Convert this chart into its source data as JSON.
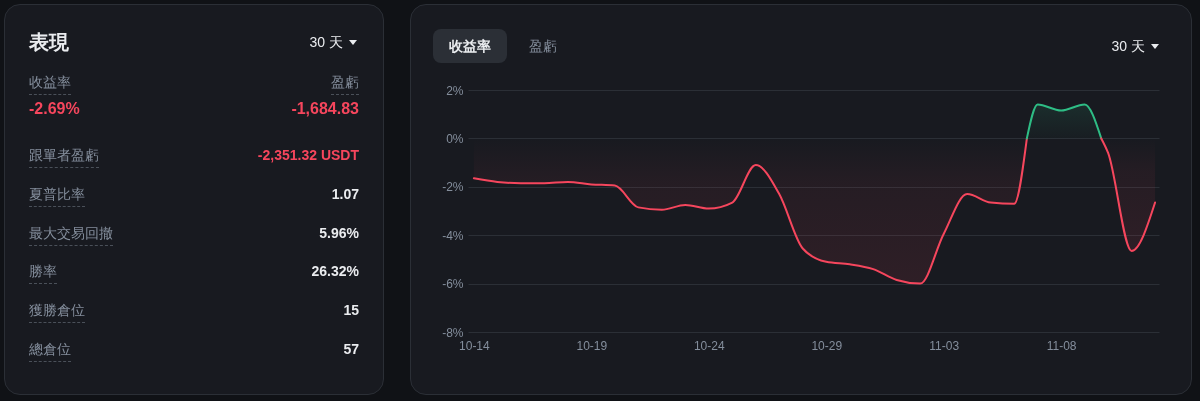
{
  "chart_data": [
    {
      "type": "other",
      "title": "表現",
      "annotations": [
        "30 天"
      ],
      "categories": [
        "收益率",
        "盈虧",
        "跟單者盈虧",
        "夏普比率",
        "最大交易回撤",
        "勝率",
        "獲勝倉位",
        "總倉位"
      ],
      "values": [
        -2.69,
        -1684.83,
        -2351.32,
        1.07,
        5.96,
        26.32,
        15,
        57
      ],
      "value_labels": [
        "-2.69%",
        "-1,684.83",
        "-2,351.32 USDT",
        "1.07",
        "5.96%",
        "26.32%",
        "15",
        "57"
      ]
    },
    {
      "type": "line",
      "annotations": [
        "收益率",
        "盈虧",
        "30 天"
      ],
      "series": [
        {
          "color": "#f6465d",
          "x": [
            "--10-14",
            "--10-15",
            "--10-16",
            "--10-17",
            "--10-18",
            "--10-19",
            "--10-20",
            "--10-21",
            "--10-22",
            "--10-23",
            "--10-24",
            "--10-25",
            "--10-26",
            "--10-27",
            "--10-28",
            "--10-29",
            "--10-30",
            "--10-31",
            "--11-01",
            "--11-02",
            "--11-03",
            "--11-04",
            "--11-05",
            "--11-06",
            "--11-06T13:00"
          ],
          "values": [
            -1.65,
            -1.8,
            -1.85,
            -1.85,
            -1.8,
            -1.9,
            -1.95,
            -2.85,
            -2.95,
            -2.75,
            -2.9,
            -2.65,
            -1.1,
            -2.3,
            -4.55,
            -5.1,
            -5.2,
            -5.4,
            -5.85,
            -6.0,
            -3.95,
            -2.3,
            -2.65,
            -2.7,
            0
          ]
        },
        {
          "color": "#2ebd85",
          "x": [
            "--11-06T13:00",
            "--11-07",
            "--11-08",
            "--11-09",
            "--11-09T17:00"
          ],
          "values": [
            0,
            1.4,
            1.15,
            1.4,
            0
          ]
        },
        {
          "color": "#f6465d",
          "x": [
            "--11-09T17:00",
            "--11-10",
            "--11-11",
            "--11-12"
          ],
          "values": [
            0,
            -0.6,
            -4.65,
            -2.65
          ]
        }
      ],
      "xlim": [
        "--10-13T18:00",
        "--11-12T04:00"
      ],
      "xticks": [
        {
          "value": "--10-14",
          "label": "10-14"
        },
        {
          "value": "--10-19",
          "label": "10-19"
        },
        {
          "value": "--10-24",
          "label": "10-24"
        },
        {
          "value": "--10-29",
          "label": "10-29"
        },
        {
          "value": "--11-03",
          "label": "11-03"
        },
        {
          "value": "--11-08",
          "label": "11-08"
        }
      ],
      "ylim": [
        -8,
        2
      ],
      "yticks": [
        {
          "value": 2,
          "label": "2%"
        },
        {
          "value": 0,
          "label": "0%"
        },
        {
          "value": -2,
          "label": "-2%"
        },
        {
          "value": -4,
          "label": "-4%"
        },
        {
          "value": -6,
          "label": "-6%"
        },
        {
          "value": -8,
          "label": "-8%"
        }
      ],
      "grid": "y"
    }
  ]
}
